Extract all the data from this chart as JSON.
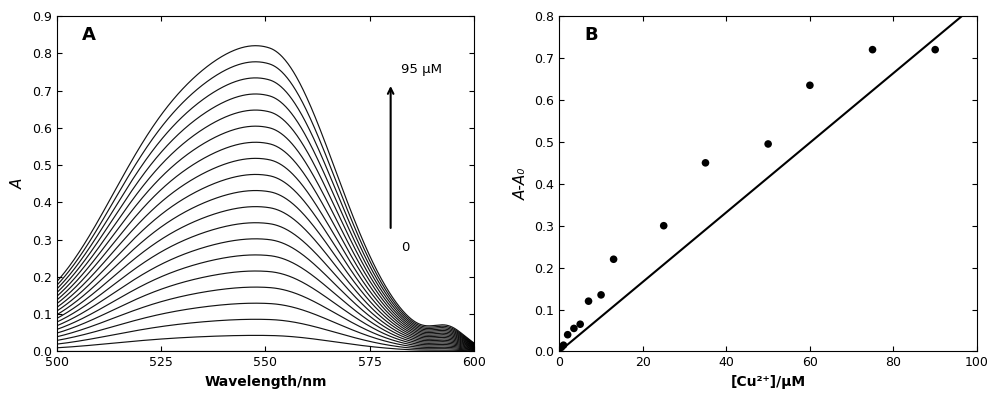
{
  "panel_A": {
    "label": "A",
    "xlabel": "Wavelength/nm",
    "ylabel": "A",
    "xlim": [
      500,
      600
    ],
    "ylim": [
      0.0,
      0.9
    ],
    "xticks": [
      500,
      525,
      550,
      575,
      600
    ],
    "yticks": [
      0.0,
      0.1,
      0.2,
      0.3,
      0.4,
      0.5,
      0.6,
      0.7,
      0.8,
      0.9
    ],
    "peak_wavelength": 551,
    "n_curves": 20,
    "max_absorbance": 0.79,
    "annotation_95": "95 μM",
    "annotation_0": "0",
    "background": "#ffffff",
    "line_color": "#000000"
  },
  "panel_B": {
    "label": "B",
    "xlabel": "[Cu²⁺]/μM",
    "ylabel": "A-A₀",
    "xlim": [
      0,
      100
    ],
    "ylim": [
      0.0,
      0.8
    ],
    "xticks": [
      0,
      20,
      40,
      60,
      80,
      100
    ],
    "yticks": [
      0.0,
      0.1,
      0.2,
      0.3,
      0.4,
      0.5,
      0.6,
      0.7,
      0.8
    ],
    "scatter_x": [
      0.5,
      1.0,
      2.0,
      3.5,
      5.0,
      7.0,
      10.0,
      13.0,
      25.0,
      35.0,
      50.0,
      60.0,
      75.0,
      90.0
    ],
    "scatter_y": [
      0.01,
      0.015,
      0.04,
      0.055,
      0.065,
      0.12,
      0.135,
      0.22,
      0.3,
      0.45,
      0.495,
      0.635,
      0.72,
      0.72
    ],
    "fit_x_start": 0,
    "fit_x_end": 100,
    "fit_y_start": 0.0,
    "fit_y_end": 0.83,
    "background": "#ffffff",
    "line_color": "#000000",
    "scatter_color": "#000000",
    "scatter_size": 30
  }
}
